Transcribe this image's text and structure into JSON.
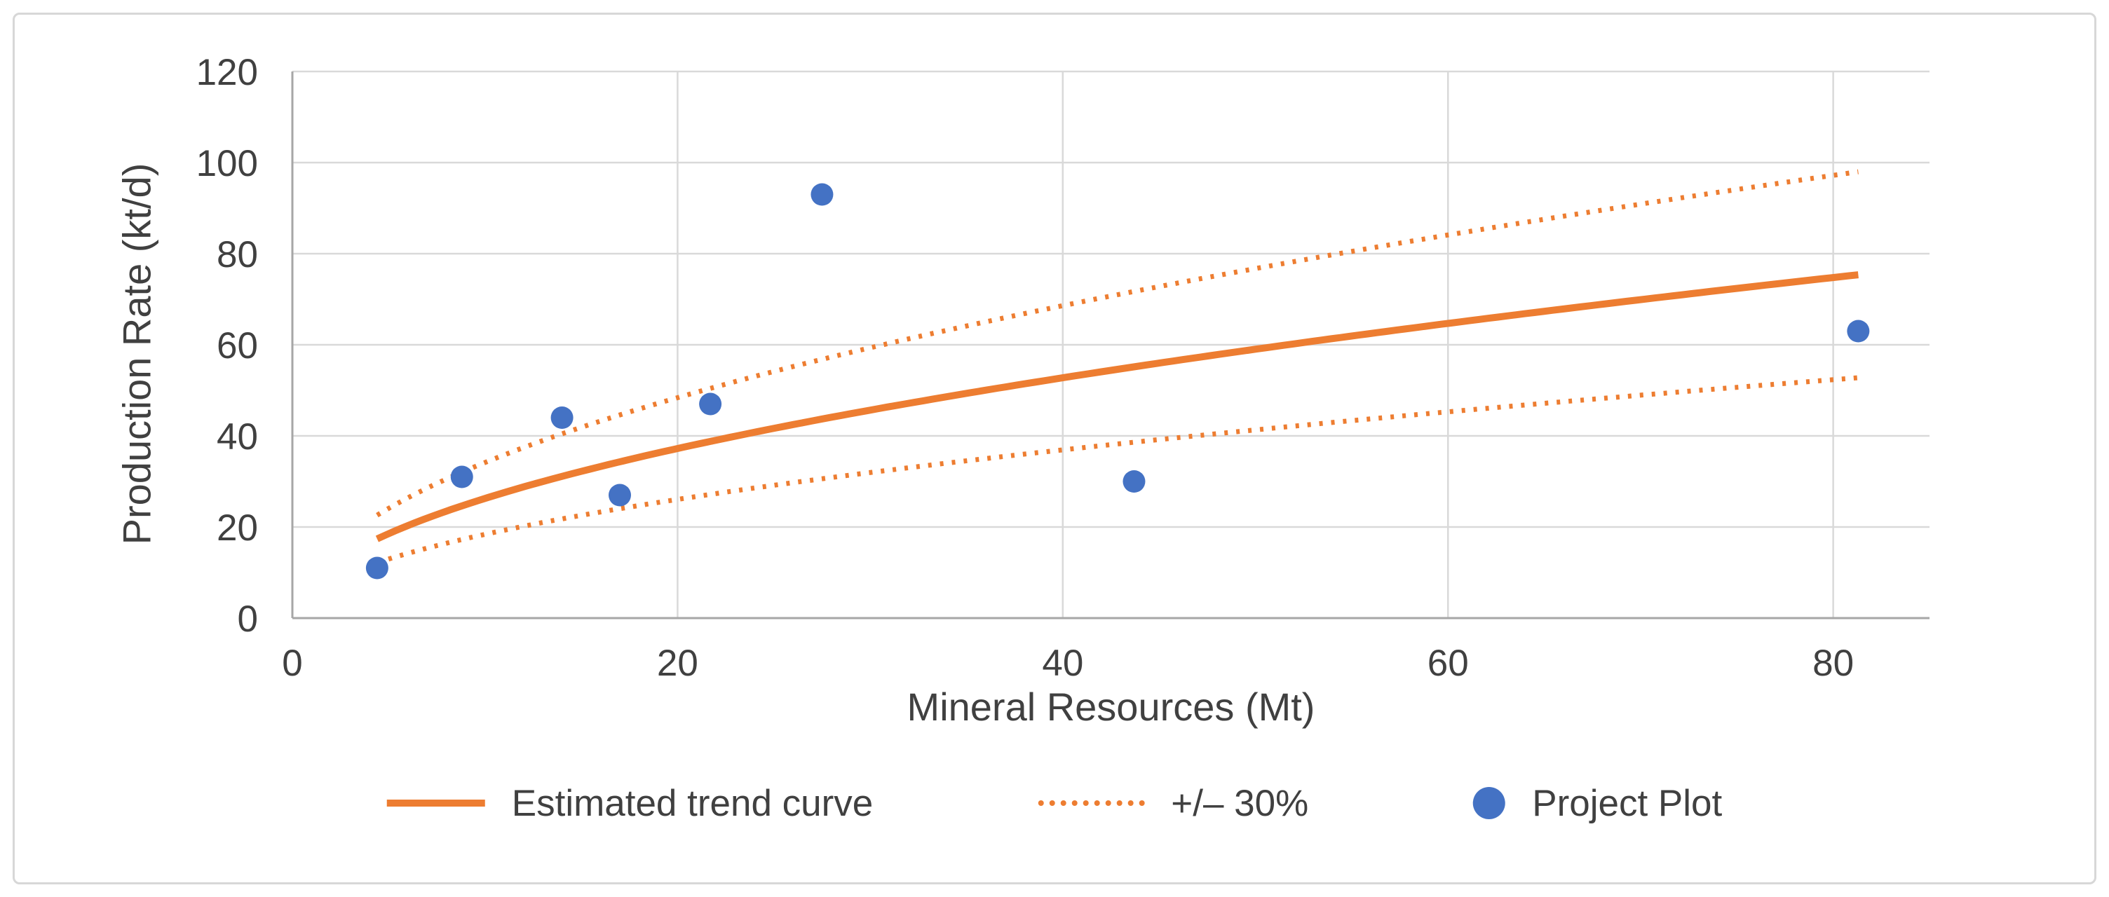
{
  "chart_data": {
    "type": "scatter",
    "title": "",
    "xlabel": "Mineral Resources (Mt)",
    "ylabel": "Production Rate (kt/d)",
    "xlim": [
      0,
      85
    ],
    "ylim": [
      0,
      120
    ],
    "xticks": [
      0,
      20,
      40,
      60,
      80
    ],
    "yticks": [
      0,
      20,
      40,
      60,
      80,
      100,
      120
    ],
    "grid": true,
    "legend_position": "bottom",
    "series": [
      {
        "name": "Estimated trend curve",
        "type": "line",
        "style": "solid",
        "color": "#ED7D31",
        "model": "power: y = 8.25 * x^0.503",
        "coefficient": 8.25,
        "exponent": 0.503,
        "x_start": 4.4,
        "x_end": 81.3
      },
      {
        "name": "+/– 30%",
        "type": "band",
        "style": "dotted",
        "color": "#ED7D31",
        "upper_multiplier": 1.3,
        "lower_multiplier": 0.7,
        "x_start": 4.4,
        "x_end": 81.3
      },
      {
        "name": "Project Plot",
        "type": "scatter",
        "color": "#4472C4",
        "marker_radius": 16,
        "points": [
          {
            "x": 4.4,
            "y": 11
          },
          {
            "x": 8.8,
            "y": 31
          },
          {
            "x": 14,
            "y": 44
          },
          {
            "x": 17,
            "y": 27
          },
          {
            "x": 21.7,
            "y": 47
          },
          {
            "x": 27.5,
            "y": 93
          },
          {
            "x": 43.7,
            "y": 30
          },
          {
            "x": 81.3,
            "y": 63
          }
        ]
      }
    ],
    "legend": {
      "entries": [
        {
          "label": "Estimated trend curve",
          "marker": "solid-line"
        },
        {
          "label": "+/– 30%",
          "marker": "dotted-line"
        },
        {
          "label": "Project Plot",
          "marker": "circle"
        }
      ]
    },
    "colors": {
      "trend": "#ED7D31",
      "band": "#ED7D31",
      "points": "#4472C4",
      "gridline": "#D9D9D9",
      "axis_line": "#A6A6A6",
      "text": "#404040",
      "frame_border": "#D7D7D7",
      "background": "#FFFFFF"
    }
  }
}
